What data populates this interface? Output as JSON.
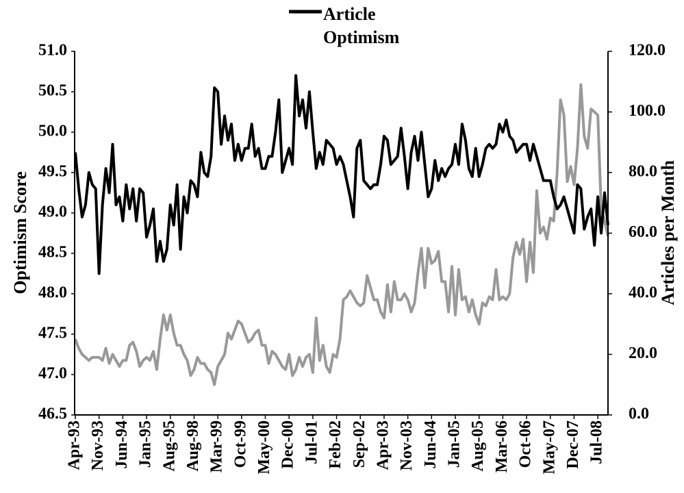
{
  "chart_data": {
    "type": "line",
    "y_label": "Optimism Score",
    "y2_label": "Articles per Month",
    "categories": [
      "Apr-93",
      null,
      null,
      null,
      null,
      null,
      null,
      "Nov-93",
      null,
      null,
      null,
      null,
      null,
      null,
      "Jun-94",
      null,
      null,
      null,
      null,
      null,
      null,
      "Jan-95",
      null,
      null,
      null,
      null,
      null,
      null,
      "Aug-95",
      null,
      null,
      null,
      null,
      null,
      null,
      "Aug-98",
      null,
      null,
      null,
      null,
      null,
      null,
      "Mar-99",
      null,
      null,
      null,
      null,
      null,
      null,
      "Oct-99",
      null,
      null,
      null,
      null,
      null,
      null,
      "May-00",
      null,
      null,
      null,
      null,
      null,
      null,
      "Dec-00",
      null,
      null,
      null,
      null,
      null,
      null,
      "Jul-01",
      null,
      null,
      null,
      null,
      null,
      null,
      "Feb-02",
      null,
      null,
      null,
      null,
      null,
      null,
      "Sep-02",
      null,
      null,
      null,
      null,
      null,
      null,
      "Apr-03",
      null,
      null,
      null,
      null,
      null,
      null,
      "Nov-03",
      null,
      null,
      null,
      null,
      null,
      null,
      "Jun-04",
      null,
      null,
      null,
      null,
      null,
      null,
      "Jan-05",
      null,
      null,
      null,
      null,
      null,
      null,
      "Aug-05",
      null,
      null,
      null,
      null,
      null,
      null,
      "Mar-06",
      null,
      null,
      null,
      null,
      null,
      null,
      "Oct-06",
      null,
      null,
      null,
      null,
      null,
      null,
      "May-07",
      null,
      null,
      null,
      null,
      null,
      null,
      "Dec-07",
      null,
      null,
      null,
      null,
      null,
      null,
      "Jul-08",
      null,
      null,
      null
    ],
    "series": [
      {
        "name": "Article Optimism",
        "color": "#000000",
        "values": [
          49.75,
          49.3,
          48.95,
          49.1,
          49.5,
          49.35,
          49.3,
          48.25,
          49.1,
          49.55,
          49.25,
          49.85,
          49.1,
          49.2,
          48.9,
          49.35,
          49.05,
          49.3,
          48.9,
          49.3,
          49.25,
          48.7,
          48.85,
          49.05,
          48.4,
          48.65,
          48.4,
          48.55,
          49.1,
          48.85,
          49.35,
          48.55,
          49.2,
          49.0,
          49.4,
          49.35,
          49.2,
          49.75,
          49.5,
          49.45,
          49.7,
          50.55,
          50.5,
          49.85,
          50.2,
          49.9,
          50.1,
          49.65,
          49.85,
          49.65,
          49.8,
          49.8,
          50.1,
          49.7,
          49.8,
          49.55,
          49.55,
          49.7,
          49.7,
          50.0,
          50.4,
          49.5,
          49.65,
          49.8,
          49.6,
          50.7,
          50.2,
          50.4,
          50.05,
          50.5,
          50.0,
          49.55,
          49.75,
          49.6,
          49.9,
          49.85,
          49.8,
          49.6,
          49.7,
          49.6,
          49.4,
          49.2,
          48.95,
          49.8,
          49.9,
          49.4,
          49.35,
          49.3,
          49.35,
          49.35,
          49.6,
          49.95,
          49.9,
          49.6,
          49.65,
          49.7,
          50.05,
          49.7,
          49.3,
          49.75,
          49.95,
          49.65,
          50.0,
          49.6,
          49.2,
          49.3,
          49.65,
          49.4,
          49.55,
          49.45,
          49.55,
          49.6,
          49.85,
          49.6,
          50.1,
          49.9,
          49.55,
          49.45,
          49.8,
          49.45,
          49.6,
          49.8,
          49.85,
          49.8,
          49.85,
          50.1,
          50.0,
          50.15,
          49.95,
          49.9,
          49.75,
          49.8,
          49.85,
          49.85,
          49.65,
          49.85,
          49.7,
          49.55,
          49.4,
          49.4,
          49.4,
          49.2,
          49.05,
          49.1,
          49.2,
          49.05,
          48.9,
          48.75,
          49.35,
          49.3,
          48.8,
          48.95,
          49.05,
          48.6,
          49.2,
          48.75,
          49.25,
          48.85
        ]
      },
      {
        "color": "#999999",
        "axis": "y2",
        "values": [
          25,
          22,
          20,
          19,
          18,
          19,
          19,
          19,
          18,
          22,
          17,
          20,
          18,
          16,
          18,
          18,
          23,
          24,
          21,
          16,
          18,
          19,
          18,
          21,
          15,
          25,
          33,
          28,
          33,
          27,
          23,
          23,
          20,
          18,
          13,
          15,
          19,
          17,
          17,
          15,
          14,
          10,
          16,
          18,
          20,
          27,
          25,
          28,
          31,
          30,
          27,
          24,
          25,
          27,
          28,
          23,
          23,
          17,
          21,
          20,
          18,
          16,
          15,
          20,
          13,
          15,
          19,
          16,
          19,
          20,
          14,
          32,
          18,
          23,
          16,
          14,
          20,
          19,
          25,
          38,
          39,
          41,
          39,
          37,
          36,
          37,
          46,
          42,
          38,
          38,
          34,
          32,
          43,
          34,
          44,
          38,
          38,
          40,
          38,
          34,
          37,
          47,
          55,
          42,
          55,
          50,
          51,
          54,
          44,
          44,
          34,
          49,
          33,
          48,
          38,
          39,
          34,
          38,
          33,
          30,
          37,
          36,
          39,
          38,
          48,
          38,
          39,
          38,
          40,
          52,
          57,
          53,
          58,
          44,
          57,
          47,
          74,
          60,
          62,
          58,
          65,
          64,
          80,
          104,
          99,
          77,
          82,
          76,
          88,
          109,
          92,
          88,
          101,
          100,
          99,
          68,
          64,
          59
        ]
      }
    ],
    "ylim": [
      46.5,
      51.0
    ],
    "yticks": [
      {
        "value": 46.5,
        "label": "46.5"
      },
      {
        "value": 47,
        "label": "47.0"
      },
      47.5,
      {
        "value": 48,
        "label": "48.0"
      },
      48.5,
      {
        "value": 49,
        "label": "49.0"
      },
      49.5,
      {
        "value": 50,
        "label": "50.0"
      },
      50.5,
      {
        "value": 51,
        "label": "51.0"
      }
    ],
    "y2lim": [
      0,
      120
    ],
    "y2ticks": [
      {
        "value": 0,
        "label": "0.0"
      },
      {
        "value": 20,
        "label": "20.0"
      },
      {
        "value": 40,
        "label": "40.0"
      },
      {
        "value": 60,
        "label": "60.0"
      },
      {
        "value": 80,
        "label": "80.0"
      },
      {
        "value": 100,
        "label": "100.0"
      },
      {
        "value": 120,
        "label": "120.0"
      }
    ],
    "grid": false,
    "legend": "top"
  }
}
